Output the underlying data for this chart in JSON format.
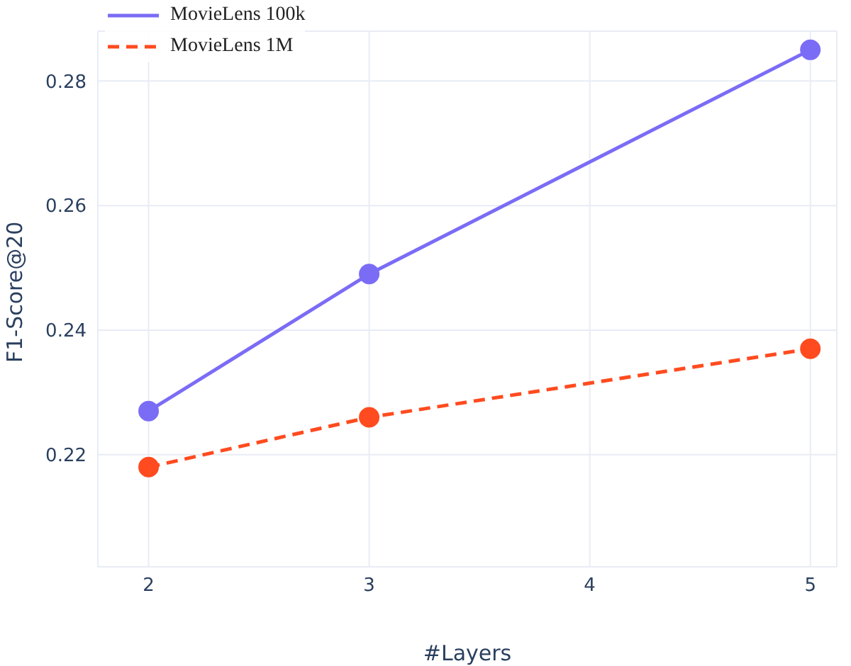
{
  "chart_data": {
    "type": "line",
    "xlabel": "#Layers",
    "ylabel": "F1-Score@20",
    "x": [
      2,
      3,
      5
    ],
    "series": [
      {
        "name": "MovieLens 100k",
        "color": "#7b6cf6",
        "values": [
          0.227,
          0.249,
          0.285
        ],
        "line_style": "solid"
      },
      {
        "name": "MovieLens 1M",
        "color": "#ff4b1f",
        "values": [
          0.218,
          0.226,
          0.237
        ],
        "line_style": "dashed"
      }
    ],
    "xlim": [
      1.77,
      5.12
    ],
    "xticks": [
      2,
      3,
      4,
      5
    ],
    "ylim": [
      0.202,
      0.288
    ],
    "yticks": [
      0.22,
      0.24,
      0.26,
      0.28
    ],
    "grid": true,
    "legend": "top left",
    "marker": "circle"
  }
}
